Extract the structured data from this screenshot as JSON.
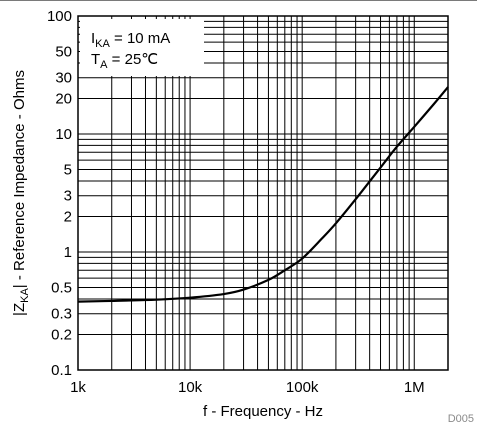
{
  "chart_data": {
    "type": "line",
    "xscale": "log",
    "yscale": "log",
    "xlim": [
      1000,
      2000000
    ],
    "ylim": [
      0.1,
      100
    ],
    "grid": true,
    "x_tick_labels": [
      {
        "value": 1000,
        "label": "1k"
      },
      {
        "value": 10000,
        "label": "10k"
      },
      {
        "value": 100000,
        "label": "100k"
      },
      {
        "value": 1000000,
        "label": "1M"
      }
    ],
    "y_tick_labels": [
      {
        "value": 0.1,
        "label": "0.1"
      },
      {
        "value": 0.2,
        "label": "0.2"
      },
      {
        "value": 0.3,
        "label": "0.3"
      },
      {
        "value": 0.5,
        "label": "0.5"
      },
      {
        "value": 1,
        "label": "1"
      },
      {
        "value": 2,
        "label": "2"
      },
      {
        "value": 3,
        "label": "3"
      },
      {
        "value": 5,
        "label": "5"
      },
      {
        "value": 10,
        "label": "10"
      },
      {
        "value": 20,
        "label": "20"
      },
      {
        "value": 30,
        "label": "30"
      },
      {
        "value": 50,
        "label": "50"
      },
      {
        "value": 100,
        "label": "100"
      }
    ],
    "xlabel": "f - Frequency - Hz",
    "ylabel": {
      "pre": "|Z",
      "sub": "KA",
      "post": "| - Reference Impedance - Ohms"
    },
    "legend": {
      "placement": "top-left",
      "lines": [
        {
          "pre": "I",
          "sub": "KA",
          "post": " = 10 mA"
        },
        {
          "pre": "T",
          "sub": "A",
          "post": " = 25℃"
        }
      ]
    },
    "figure_id": "D005",
    "series": [
      {
        "color": "#000000",
        "x": [
          1000,
          2000,
          5000,
          10000,
          20000,
          30000,
          50000,
          70000,
          100000,
          150000,
          200000,
          300000,
          500000,
          700000,
          1000000,
          1500000,
          2000000
        ],
        "y": [
          0.38,
          0.385,
          0.395,
          0.41,
          0.44,
          0.48,
          0.58,
          0.7,
          0.88,
          1.3,
          1.75,
          2.8,
          5.2,
          7.8,
          11.5,
          18,
          25
        ]
      }
    ]
  }
}
